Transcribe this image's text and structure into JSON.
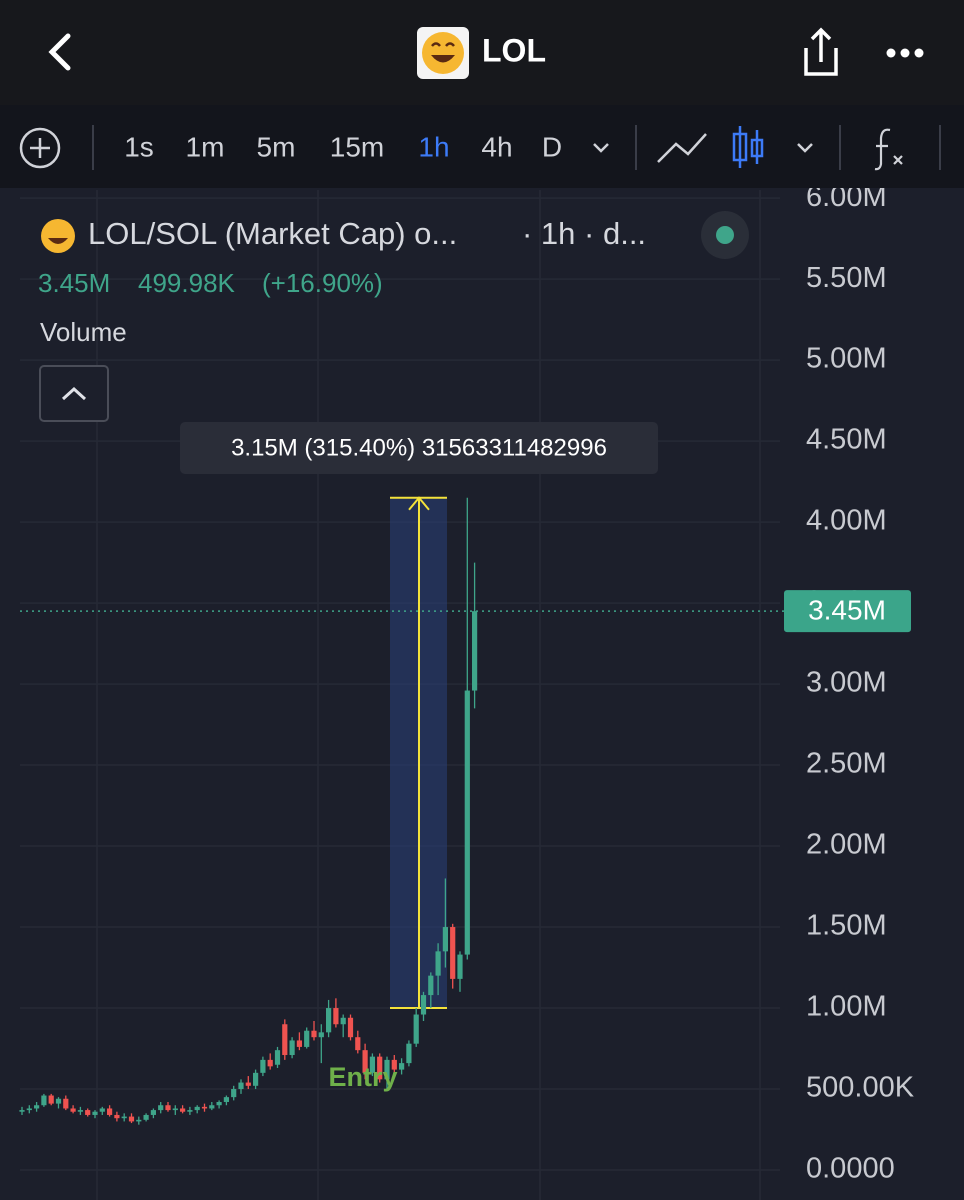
{
  "header": {
    "title": "LOL"
  },
  "toolbar": {
    "intervals": [
      "1s",
      "1m",
      "5m",
      "15m",
      "1h",
      "4h",
      "D"
    ],
    "active": "1h"
  },
  "legend": {
    "symbol": "LOL/SOL (Market Cap) o...",
    "interval": "· 1h · d...",
    "price": "3.45M",
    "change": "499.98K",
    "change_percent": "(+16.90%)",
    "volume": "Volume"
  },
  "chart_data": {
    "type": "candlestick",
    "ylim": [
      -185000,
      6050000
    ],
    "yticks": [
      {
        "value": 0,
        "label": "0.0000"
      },
      {
        "value": 500000,
        "label": "500.00K"
      },
      {
        "value": 1000000,
        "label": "1.00M"
      },
      {
        "value": 1500000,
        "label": "1.50M"
      },
      {
        "value": 2000000,
        "label": "2.00M"
      },
      {
        "value": 2500000,
        "label": "2.50M"
      },
      {
        "value": 3000000,
        "label": "3.00M"
      },
      {
        "value": 3500000,
        "label": "3.50M"
      },
      {
        "value": 4000000,
        "label": "4.00M"
      },
      {
        "value": 4500000,
        "label": "4.50M"
      },
      {
        "value": 5000000,
        "label": "5.00M"
      },
      {
        "value": 5500000,
        "label": "5.50M"
      },
      {
        "value": 6000000,
        "label": "6.00M"
      }
    ],
    "up_color": "#3fa58a",
    "down_color": "#ef5350",
    "open": [
      360000,
      370000,
      380000,
      400000,
      460000,
      410000,
      440000,
      380000,
      360000,
      370000,
      340000,
      360000,
      380000,
      340000,
      320000,
      330000,
      300000,
      310000,
      340000,
      370000,
      400000,
      370000,
      380000,
      360000,
      370000,
      390000,
      380000,
      400000,
      420000,
      450000,
      500000,
      540000,
      520000,
      600000,
      680000,
      650000,
      900000,
      710000,
      800000,
      760000,
      860000,
      820000,
      850000,
      1000000,
      900000,
      940000,
      820000,
      740000,
      600000,
      700000,
      560000,
      680000,
      620000,
      660000,
      780000,
      960000,
      1080000,
      1200000,
      1350000,
      1500000,
      1180000,
      1330000,
      2960000
    ],
    "high": [
      390000,
      400000,
      420000,
      470000,
      470000,
      450000,
      460000,
      400000,
      390000,
      380000,
      370000,
      390000,
      400000,
      360000,
      350000,
      350000,
      330000,
      350000,
      380000,
      420000,
      420000,
      400000,
      400000,
      390000,
      400000,
      410000,
      420000,
      430000,
      460000,
      520000,
      560000,
      580000,
      620000,
      700000,
      720000,
      760000,
      930000,
      820000,
      850000,
      880000,
      920000,
      900000,
      1050000,
      1060000,
      960000,
      960000,
      860000,
      780000,
      720000,
      720000,
      700000,
      710000,
      690000,
      800000,
      1000000,
      1100000,
      1220000,
      1400000,
      1800000,
      1520000,
      1350000,
      4150000,
      3750000
    ],
    "low": [
      340000,
      350000,
      360000,
      390000,
      400000,
      380000,
      370000,
      350000,
      340000,
      330000,
      320000,
      340000,
      330000,
      300000,
      300000,
      290000,
      280000,
      300000,
      320000,
      350000,
      360000,
      340000,
      350000,
      340000,
      350000,
      360000,
      370000,
      380000,
      400000,
      430000,
      470000,
      500000,
      500000,
      580000,
      620000,
      630000,
      680000,
      690000,
      740000,
      750000,
      800000,
      660000,
      820000,
      880000,
      820000,
      800000,
      720000,
      560000,
      580000,
      540000,
      500000,
      600000,
      590000,
      640000,
      760000,
      920000,
      1000000,
      1080000,
      1250000,
      1120000,
      1100000,
      1300000,
      2850000
    ],
    "close": [
      370000,
      380000,
      400000,
      460000,
      410000,
      440000,
      380000,
      360000,
      370000,
      340000,
      360000,
      380000,
      340000,
      320000,
      330000,
      300000,
      310000,
      340000,
      370000,
      400000,
      370000,
      380000,
      360000,
      370000,
      390000,
      380000,
      400000,
      420000,
      450000,
      500000,
      540000,
      520000,
      600000,
      680000,
      640000,
      740000,
      710000,
      800000,
      760000,
      860000,
      820000,
      850000,
      1000000,
      900000,
      940000,
      820000,
      740000,
      600000,
      700000,
      560000,
      680000,
      620000,
      660000,
      780000,
      960000,
      1080000,
      1200000,
      1350000,
      1500000,
      1180000,
      1330000,
      2960000,
      3450000
    ],
    "last_price": {
      "value": 3450000,
      "label": "3.45M"
    },
    "measure": {
      "from": 1000000,
      "to": 4150000,
      "label": "3.15M (315.40%) 31563311482996"
    },
    "annotation": "Entry"
  }
}
